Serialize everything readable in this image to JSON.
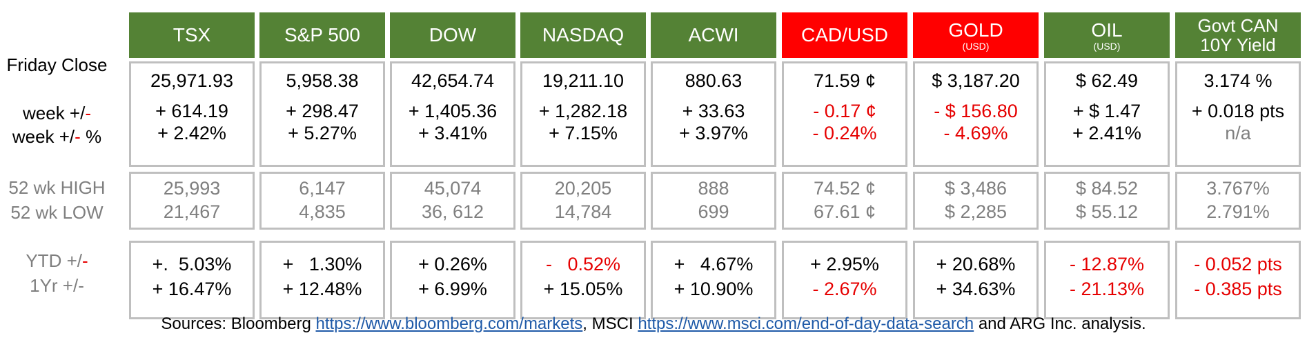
{
  "colors": {
    "green": "#548235",
    "red": "#ff0000",
    "negative": "#e60000",
    "grey_text": "#7f7f7f",
    "border": "#bfbfbf"
  },
  "row_labels": {
    "friday_close": "Friday Close",
    "week_pm_prefix": "week +/",
    "week_pm_dash": "-",
    "week_pct_prefix": "week +/",
    "week_pct_dash": "-",
    "week_pct_suffix": " %",
    "high": "52 wk HIGH",
    "low": "52 wk LOW",
    "ytd_prefix": "YTD +/",
    "ytd_dash": "-",
    "yr_label": "1Yr +/-"
  },
  "columns": [
    {
      "name": "TSX",
      "sub": "",
      "header_color": "#548235",
      "close": "25,971.93",
      "week": "+ 614.19",
      "week_pct": "+ 2.42%",
      "high": "25,993",
      "low": "21,467",
      "ytd": "+.  5.03%",
      "yr": "+ 16.47%"
    },
    {
      "name": "S&P 500",
      "sub": "",
      "header_color": "#548235",
      "close": "5,958.38",
      "week": "+ 298.47",
      "week_pct": "+ 5.27%",
      "high": "6,147",
      "low": "4,835",
      "ytd": "+   1.30%",
      "yr": "+ 12.48%"
    },
    {
      "name": "DOW",
      "sub": "",
      "header_color": "#548235",
      "close": "42,654.74",
      "week": "+ 1,405.36",
      "week_pct": "+ 3.41%",
      "high": "45,074",
      "low": "36, 612",
      "ytd": "+ 0.26%",
      "yr": "+ 6.99%"
    },
    {
      "name": "NASDAQ",
      "sub": "",
      "header_color": "#548235",
      "close": "19,211.10",
      "week": "+ 1,282.18",
      "week_pct": "+ 7.15%",
      "high": "20,205",
      "low": "14,784",
      "ytd": "-   0.52%",
      "yr": "+ 15.05%"
    },
    {
      "name": "ACWI",
      "sub": "",
      "header_color": "#548235",
      "close": "880.63",
      "week": "+ 33.63",
      "week_pct": "+ 3.97%",
      "high": "888",
      "low": "699",
      "ytd": "+   4.67%",
      "yr": "+ 10.90%"
    },
    {
      "name": "CAD/USD",
      "sub": "",
      "header_color": "#ff0000",
      "close": "71.59 ¢",
      "week": "- 0.17 ¢",
      "week_pct": "- 0.24%",
      "high": "74.52 ¢",
      "low": "67.61 ¢",
      "ytd": "+ 2.95%",
      "yr": "- 2.67%"
    },
    {
      "name": "GOLD",
      "sub": "(USD)",
      "header_color": "#ff0000",
      "close": "$ 3,187.20",
      "week": "- $ 156.80",
      "week_pct": "- 4.69%",
      "high": "$ 3,486",
      "low": "$ 2,285",
      "ytd": "+ 20.68%",
      "yr": "+ 34.63%"
    },
    {
      "name": "OIL",
      "sub": "(USD)",
      "header_color": "#548235",
      "close": "$ 62.49",
      "week": "+ $ 1.47",
      "week_pct": "+ 2.41%",
      "high": "$ 84.52",
      "low": "$ 55.12",
      "ytd": "- 12.87%",
      "yr": "- 21.13%"
    },
    {
      "name": "Govt CAN",
      "name2": "10Y Yield",
      "sub": "",
      "header_color": "#548235",
      "close": "3.174 %",
      "week": "+ 0.018 pts",
      "week_pct": "n/a",
      "high": "3.767%",
      "low": "2.791%",
      "ytd": "- 0.052 pts",
      "yr": "- 0.385 pts"
    }
  ],
  "sources": {
    "prefix": "Sources: Bloomberg ",
    "link1": "https://www.bloomberg.com/markets",
    "middle": ", MSCI ",
    "link2": "https://www.msci.com/end-of-day-data-search",
    "suffix": " and ARG Inc. analysis."
  }
}
